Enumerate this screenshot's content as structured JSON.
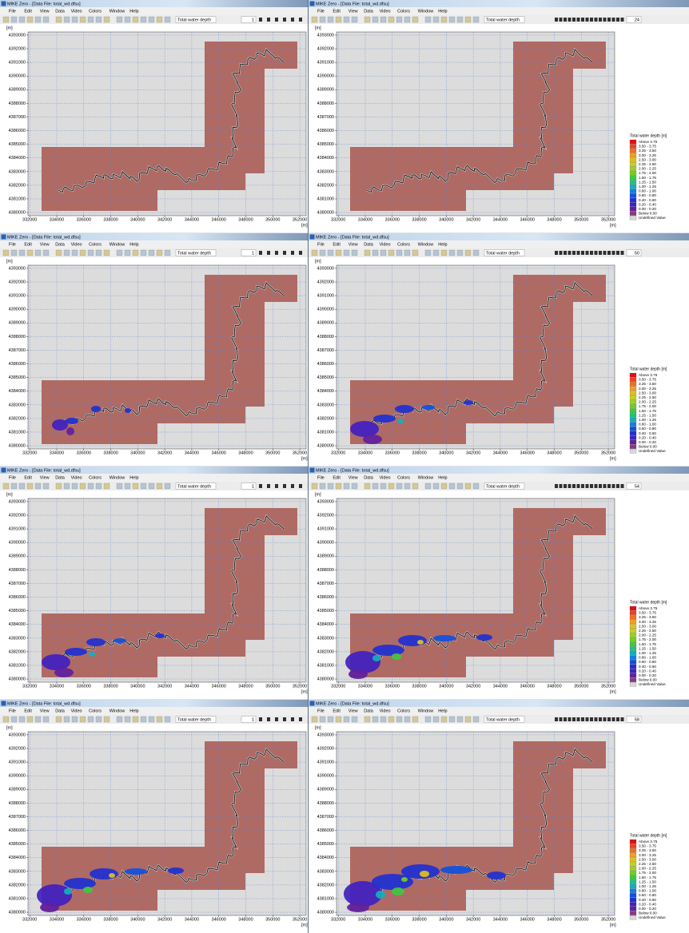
{
  "window_title": "MIKE Zero - [Data File: total_wd.dfsu]",
  "menu": [
    "File",
    "Edit",
    "View",
    "Data",
    "Video",
    "Colors",
    "Window",
    "Help"
  ],
  "item_selector": "Total water depth",
  "unit_label": "[m]",
  "xlim": [
    331870,
    352470
  ],
  "ylim": [
    4379770,
    4393230
  ],
  "xticks": [
    332000,
    334000,
    336000,
    338000,
    340000,
    342000,
    344000,
    346000,
    348000,
    350000,
    352000
  ],
  "yticks": [
    4380000,
    4381000,
    4382000,
    4383000,
    4384000,
    4385000,
    4386000,
    4387000,
    4388000,
    4389000,
    4390000,
    4391000,
    4392000,
    4393000
  ],
  "grid": true,
  "legend": {
    "title": "Total water depth [m]",
    "entries": [
      {
        "label": "Above 3.75",
        "color": "#e01010"
      },
      {
        "label": "3.50 - 3.75",
        "color": "#f04020"
      },
      {
        "label": "3.25 - 3.50",
        "color": "#f07020"
      },
      {
        "label": "3.00 - 3.25",
        "color": "#f0a020"
      },
      {
        "label": "2.50 - 3.00",
        "color": "#e0c020"
      },
      {
        "label": "2.25 - 2.50",
        "color": "#c8d020"
      },
      {
        "label": "2.00 - 2.25",
        "color": "#a0d020"
      },
      {
        "label": "1.75 - 2.00",
        "color": "#70d020"
      },
      {
        "label": "1.50 - 1.75",
        "color": "#40c840"
      },
      {
        "label": "1.25 - 1.50",
        "color": "#20c080"
      },
      {
        "label": "1.00 - 1.25",
        "color": "#10b0c0"
      },
      {
        "label": "0.80 - 1.00",
        "color": "#1080e0"
      },
      {
        "label": "0.60 - 0.80",
        "color": "#1050e0"
      },
      {
        "label": "0.40 - 0.60",
        "color": "#2030d0"
      },
      {
        "label": "0.20 - 0.40",
        "color": "#4020c0"
      },
      {
        "label": "0.00 - 0.20",
        "color": "#6020a0"
      },
      {
        "label": "Below 0.00",
        "color": "#8a3a80"
      },
      {
        "label": "Undefined Value",
        "color": "#d8d8d8"
      }
    ]
  },
  "panels": [
    {
      "time_step": 1,
      "legend": false
    },
    {
      "time_step": 24,
      "legend": true
    },
    {
      "time_step": 1,
      "legend": false
    },
    {
      "time_step": 50,
      "legend": true
    },
    {
      "time_step": 1,
      "legend": false
    },
    {
      "time_step": 54,
      "legend": true
    },
    {
      "time_step": 1,
      "legend": false
    },
    {
      "time_step": 58,
      "legend": true
    }
  ]
}
